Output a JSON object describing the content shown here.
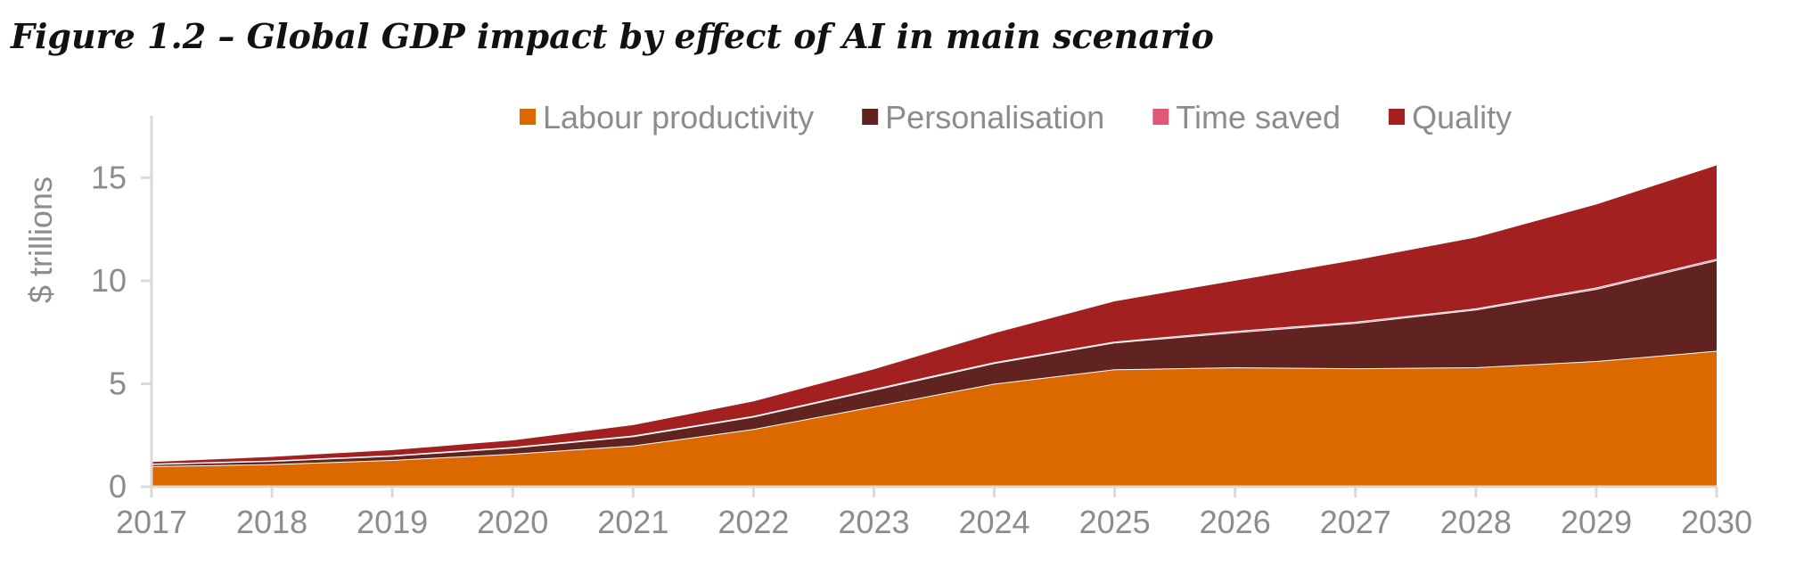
{
  "chart_data": {
    "type": "area",
    "stacked": true,
    "title": "Figure 1.2 – Global GDP impact by effect of AI in main scenario",
    "ylabel": "$ trillions",
    "xlabel": "",
    "x": [
      "2017",
      "2018",
      "2019",
      "2020",
      "2021",
      "2022",
      "2023",
      "2024",
      "2025",
      "2026",
      "2027",
      "2028",
      "2029",
      "2030"
    ],
    "ylim": [
      0,
      18
    ],
    "yticks": [
      "0",
      "5",
      "10",
      "15"
    ],
    "legend_position": "top",
    "series": [
      {
        "name": "Labour productivity",
        "color": "#dc6900",
        "values": [
          1.0,
          1.1,
          1.3,
          1.6,
          2.0,
          2.8,
          3.9,
          5.0,
          5.7,
          5.8,
          5.75,
          5.8,
          6.1,
          6.6
        ]
      },
      {
        "name": "Personalisation",
        "color": "#602320",
        "values": [
          0.1,
          0.15,
          0.2,
          0.3,
          0.45,
          0.6,
          0.8,
          1.0,
          1.3,
          1.7,
          2.2,
          2.8,
          3.5,
          4.4
        ]
      },
      {
        "name": "Time saved",
        "color": "#e0577a",
        "values": [
          0.02,
          0.02,
          0.03,
          0.03,
          0.04,
          0.04,
          0.05,
          0.05,
          0.05,
          0.06,
          0.06,
          0.06,
          0.07,
          0.07
        ]
      },
      {
        "name": "Quality",
        "color": "#a32020",
        "values": [
          0.08,
          0.18,
          0.25,
          0.32,
          0.5,
          0.7,
          0.95,
          1.4,
          1.95,
          2.44,
          2.99,
          3.44,
          4.03,
          4.53
        ]
      }
    ]
  }
}
